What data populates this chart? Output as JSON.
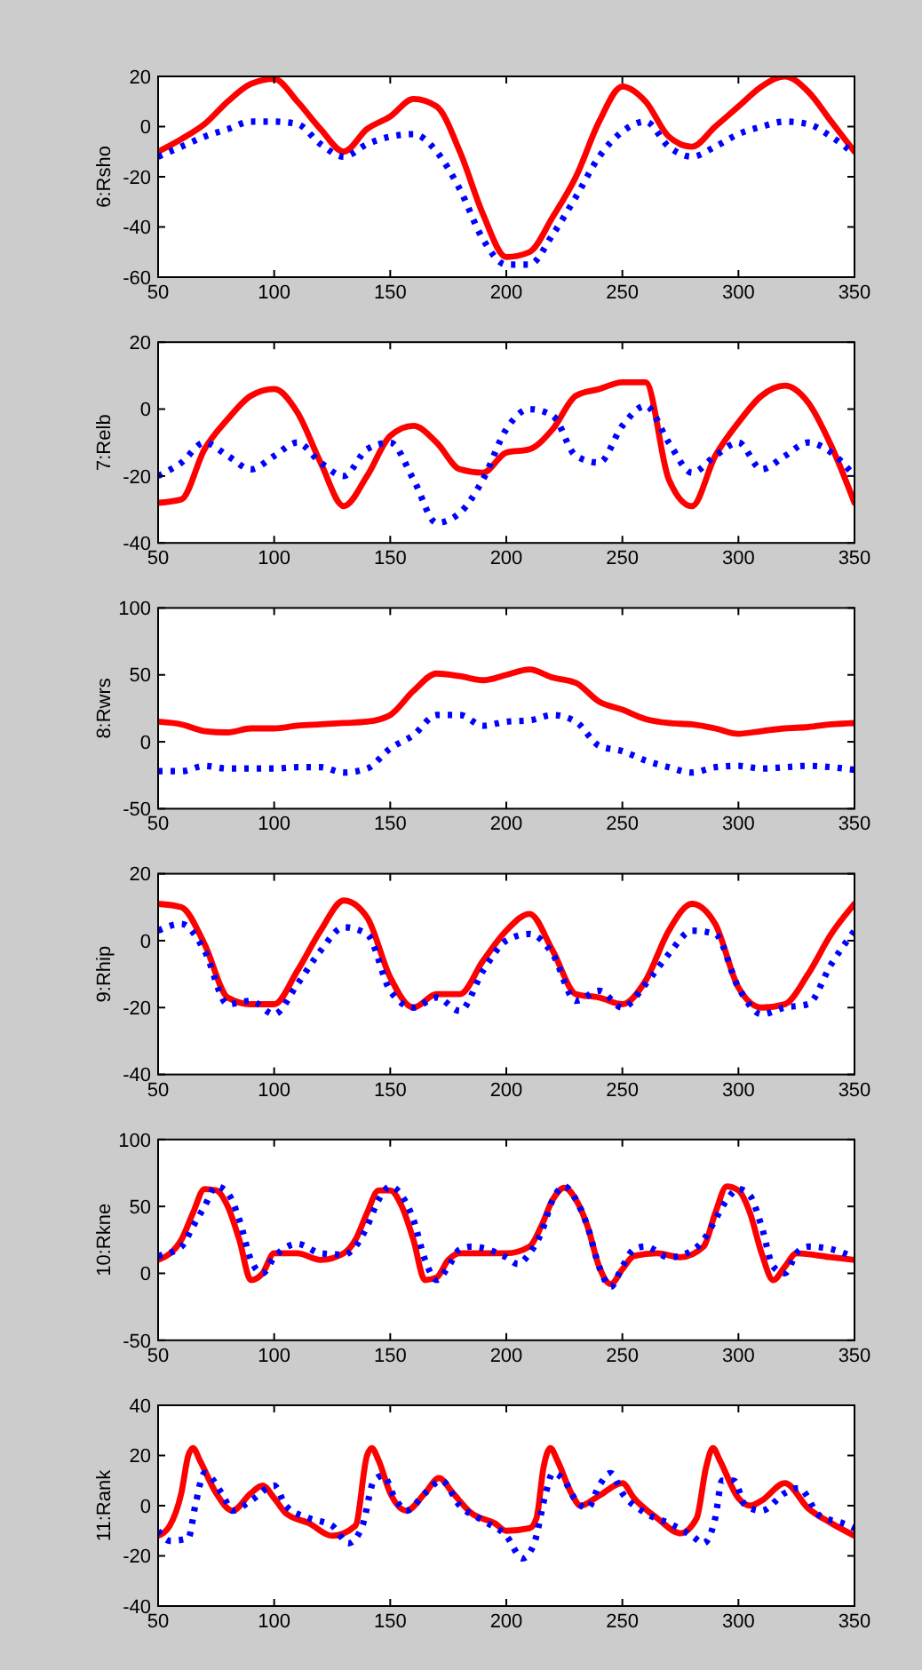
{
  "chart_data": [
    {
      "type": "line",
      "ylabel": "6:Rsho",
      "xlim": [
        50,
        350
      ],
      "xticks": [
        50,
        100,
        150,
        200,
        250,
        300,
        350
      ],
      "ylim": [
        -60,
        20
      ],
      "yticks": [
        -60,
        -40,
        -20,
        0,
        20
      ],
      "x": [
        50,
        60,
        70,
        80,
        90,
        100,
        110,
        120,
        130,
        140,
        150,
        160,
        170,
        180,
        190,
        200,
        210,
        220,
        230,
        240,
        250,
        260,
        270,
        280,
        290,
        300,
        310,
        320,
        330,
        340,
        350
      ],
      "series": [
        {
          "color": "#ff0000",
          "line_style": "solid",
          "values": [
            -10,
            -5,
            1,
            10,
            17,
            19,
            10,
            -1,
            -10,
            -1,
            4,
            11,
            8,
            -10,
            -35,
            -52,
            -50,
            -36,
            -20,
            2,
            16,
            10,
            -4,
            -8,
            0,
            8,
            16,
            20,
            14,
            2,
            -10
          ]
        },
        {
          "color": "#0000ff",
          "line_style": "dotted",
          "values": [
            -12,
            -8,
            -4,
            -1,
            2,
            2,
            1,
            -7,
            -12,
            -7,
            -4,
            -3,
            -10,
            -25,
            -45,
            -55,
            -55,
            -43,
            -28,
            -12,
            -2,
            2,
            -8,
            -12,
            -8,
            -3,
            0,
            2,
            1,
            -4,
            -11
          ]
        }
      ]
    },
    {
      "type": "line",
      "ylabel": "7:Relb",
      "xlim": [
        50,
        350
      ],
      "xticks": [
        50,
        100,
        150,
        200,
        250,
        300,
        350
      ],
      "ylim": [
        -40,
        20
      ],
      "yticks": [
        -40,
        -20,
        0,
        20
      ],
      "x": [
        50,
        60,
        70,
        80,
        90,
        100,
        110,
        120,
        130,
        140,
        150,
        160,
        170,
        180,
        190,
        200,
        210,
        220,
        230,
        240,
        250,
        260,
        270,
        280,
        290,
        300,
        310,
        320,
        330,
        340,
        350
      ],
      "series": [
        {
          "color": "#ff0000",
          "line_style": "solid",
          "values": [
            -28,
            -27,
            -12,
            -3,
            4,
            6,
            -1,
            -16,
            -29,
            -20,
            -8,
            -5,
            -10,
            -18,
            -19,
            -13,
            -12,
            -6,
            4,
            6,
            8,
            8,
            -21,
            -29,
            -14,
            -4,
            4,
            7,
            2,
            -11,
            -28
          ]
        },
        {
          "color": "#0000ff",
          "line_style": "dotted",
          "values": [
            -20,
            -16,
            -10,
            -14,
            -18,
            -14,
            -10,
            -16,
            -20,
            -12,
            -10,
            -21,
            -34,
            -31,
            -21,
            -6,
            0,
            -2,
            -14,
            -16,
            -5,
            1,
            -10,
            -19,
            -14,
            -10,
            -18,
            -14,
            -10,
            -13,
            -20
          ]
        }
      ]
    },
    {
      "type": "line",
      "ylabel": "8:Rwrs",
      "xlim": [
        50,
        350
      ],
      "xticks": [
        50,
        100,
        150,
        200,
        250,
        300,
        350
      ],
      "ylim": [
        -50,
        100
      ],
      "yticks": [
        -50,
        0,
        50,
        100
      ],
      "x": [
        50,
        60,
        70,
        80,
        90,
        100,
        110,
        120,
        130,
        140,
        150,
        160,
        170,
        180,
        190,
        200,
        210,
        220,
        230,
        240,
        250,
        260,
        270,
        280,
        290,
        300,
        310,
        320,
        330,
        340,
        350
      ],
      "series": [
        {
          "color": "#ff0000",
          "line_style": "solid",
          "values": [
            15,
            13,
            8,
            7,
            10,
            10,
            12,
            13,
            14,
            15,
            20,
            38,
            51,
            49,
            46,
            50,
            54,
            48,
            44,
            30,
            24,
            17,
            14,
            13,
            10,
            6,
            8,
            10,
            11,
            13,
            14
          ]
        },
        {
          "color": "#0000ff",
          "line_style": "dotted",
          "values": [
            -22,
            -22,
            -18,
            -20,
            -20,
            -20,
            -19,
            -19,
            -23,
            -20,
            -5,
            5,
            20,
            20,
            12,
            15,
            16,
            20,
            15,
            -3,
            -7,
            -14,
            -19,
            -23,
            -19,
            -18,
            -20,
            -19,
            -18,
            -19,
            -21
          ]
        }
      ]
    },
    {
      "type": "line",
      "ylabel": "9:Rhip",
      "xlim": [
        50,
        350
      ],
      "xticks": [
        50,
        100,
        150,
        200,
        250,
        300,
        350
      ],
      "ylim": [
        -40,
        20
      ],
      "yticks": [
        -40,
        -20,
        0,
        20
      ],
      "x": [
        50,
        60,
        70,
        80,
        90,
        100,
        110,
        120,
        130,
        140,
        150,
        160,
        170,
        180,
        190,
        200,
        210,
        220,
        230,
        240,
        250,
        260,
        270,
        280,
        290,
        300,
        310,
        320,
        330,
        340,
        350
      ],
      "series": [
        {
          "color": "#ff0000",
          "line_style": "solid",
          "values": [
            11,
            10,
            -1,
            -17,
            -19,
            -19,
            -9,
            3,
            12,
            7,
            -11,
            -20,
            -16,
            -16,
            -6,
            3,
            8,
            -3,
            -16,
            -17,
            -19,
            -12,
            3,
            11,
            5,
            -14,
            -20,
            -19,
            -10,
            2,
            11
          ]
        },
        {
          "color": "#0000ff",
          "line_style": "dotted",
          "values": [
            3,
            5,
            -3,
            -19,
            -18,
            -22,
            -13,
            -3,
            4,
            2,
            -15,
            -20,
            -17,
            -21,
            -9,
            0,
            2,
            -4,
            -18,
            -15,
            -20,
            -13,
            -4,
            3,
            2,
            -14,
            -22,
            -20,
            -19,
            -7,
            3
          ]
        }
      ]
    },
    {
      "type": "line",
      "ylabel": "10:Rkne",
      "xlim": [
        50,
        350
      ],
      "xticks": [
        50,
        100,
        150,
        200,
        250,
        300,
        350
      ],
      "ylim": [
        -50,
        100
      ],
      "yticks": [
        -50,
        0,
        50,
        100
      ],
      "series": [
        {
          "color": "#ff0000",
          "line_style": "solid",
          "x": [
            50,
            60,
            65,
            70,
            75,
            80,
            85,
            90,
            95,
            100,
            110,
            120,
            130,
            135,
            140,
            145,
            150,
            155,
            160,
            165,
            170,
            175,
            180,
            200,
            210,
            215,
            220,
            225,
            230,
            235,
            240,
            245,
            250,
            255,
            265,
            275,
            285,
            290,
            295,
            300,
            305,
            310,
            315,
            320,
            325,
            340,
            350
          ],
          "values": [
            10,
            25,
            45,
            63,
            62,
            50,
            25,
            -5,
            0,
            15,
            15,
            10,
            15,
            25,
            45,
            62,
            62,
            50,
            25,
            -5,
            -3,
            10,
            15,
            15,
            20,
            35,
            55,
            64,
            55,
            35,
            5,
            -8,
            3,
            13,
            15,
            12,
            20,
            45,
            65,
            62,
            45,
            15,
            -5,
            5,
            15,
            12,
            10
          ]
        },
        {
          "color": "#0000ff",
          "line_style": "dotted",
          "x": [
            50,
            60,
            65,
            70,
            75,
            80,
            85,
            90,
            95,
            100,
            110,
            120,
            130,
            135,
            140,
            145,
            150,
            155,
            160,
            165,
            170,
            175,
            180,
            185,
            200,
            205,
            210,
            215,
            220,
            225,
            230,
            235,
            240,
            245,
            250,
            255,
            260,
            270,
            280,
            285,
            290,
            295,
            300,
            305,
            310,
            315,
            320,
            325,
            330,
            340,
            350
          ],
          "values": [
            13,
            20,
            35,
            50,
            65,
            60,
            40,
            10,
            0,
            12,
            22,
            15,
            14,
            20,
            35,
            55,
            65,
            58,
            40,
            10,
            -5,
            5,
            18,
            20,
            12,
            7,
            15,
            30,
            55,
            65,
            55,
            35,
            5,
            -10,
            5,
            18,
            20,
            12,
            17,
            25,
            40,
            55,
            63,
            58,
            35,
            5,
            0,
            15,
            20,
            18,
            12
          ]
        }
      ]
    },
    {
      "type": "line",
      "ylabel": "11:Rank",
      "xlim": [
        50,
        350
      ],
      "xticks": [
        50,
        100,
        150,
        200,
        250,
        300,
        350
      ],
      "ylim": [
        -40,
        40
      ],
      "yticks": [
        -40,
        -20,
        0,
        20,
        40
      ],
      "series": [
        {
          "color": "#ff0000",
          "line_style": "solid",
          "x": [
            50,
            55,
            60,
            63,
            65,
            68,
            75,
            82,
            90,
            95,
            100,
            105,
            115,
            125,
            135,
            140,
            142,
            145,
            150,
            157,
            165,
            171,
            177,
            185,
            195,
            200,
            210,
            213,
            216,
            219,
            222,
            228,
            232,
            240,
            250,
            255,
            265,
            275,
            282,
            286,
            289,
            292,
            300,
            305,
            310,
            320,
            330,
            340,
            350
          ],
          "values": [
            -12,
            -8,
            5,
            20,
            23,
            18,
            5,
            -2,
            5,
            8,
            3,
            -3,
            -7,
            -12,
            -8,
            20,
            23,
            18,
            5,
            -2,
            5,
            11,
            5,
            -3,
            -7,
            -10,
            -9,
            -5,
            15,
            23,
            18,
            5,
            0,
            4,
            9,
            3,
            -5,
            -11,
            -5,
            15,
            23,
            18,
            3,
            0,
            2,
            9,
            -1,
            -7,
            -12
          ]
        },
        {
          "color": "#0000ff",
          "line_style": "dotted",
          "x": [
            50,
            55,
            63,
            66,
            70,
            78,
            82,
            90,
            100,
            105,
            115,
            125,
            132,
            138,
            143,
            147,
            152,
            157,
            165,
            172,
            180,
            190,
            200,
            207,
            212,
            217,
            220,
            225,
            230,
            235,
            240,
            245,
            250,
            260,
            270,
            280,
            285,
            290,
            293,
            298,
            303,
            310,
            320,
            326,
            335,
            345,
            350
          ],
          "values": [
            -10,
            -14,
            -13,
            0,
            13,
            4,
            -2,
            2,
            8,
            0,
            -5,
            -8,
            -15,
            -8,
            10,
            12,
            3,
            -2,
            5,
            10,
            0,
            -6,
            -12,
            -21,
            -15,
            5,
            13,
            10,
            2,
            -1,
            8,
            13,
            5,
            -3,
            -7,
            -12,
            -15,
            -5,
            10,
            10,
            0,
            -2,
            5,
            7,
            -4,
            -7,
            -9
          ]
        }
      ]
    }
  ]
}
